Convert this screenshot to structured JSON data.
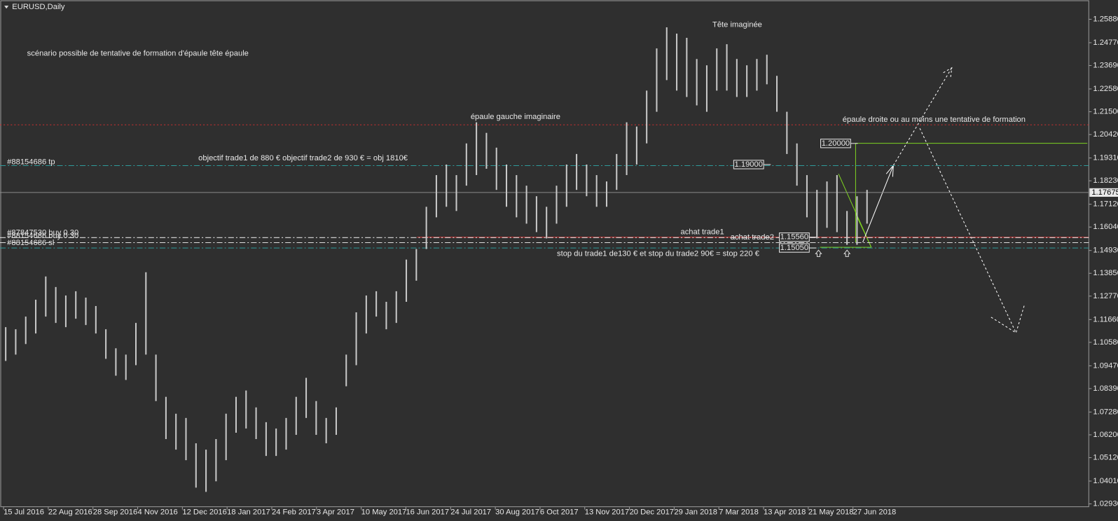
{
  "chart_data": {
    "type": "ohlc",
    "title": "EURUSD,Daily",
    "annotations": [
      "scénario possible de tentative de formation d'épaule tête épaule",
      "Tête imaginée",
      "épaule gauche imaginaire",
      "épaule droite ou au moins une tentative de formation",
      "objectif trade1 de 880 € objectif trade2 de 930 € = obj 1810€",
      "achat trade1",
      "achat trade2",
      "stop du trade1 de130 € et stop du trade2 90€ = stop 220 €"
    ],
    "x_labels": [
      "15 Jul 2016",
      "22 Aug 2016",
      "28 Sep 2016",
      "4 Nov 2016",
      "12 Dec 2016",
      "18 Jan 2017",
      "24 Feb 2017",
      "3 Apr 2017",
      "10 May 2017",
      "16 Jun 2017",
      "24 Jul 2017",
      "30 Aug 2017",
      "6 Oct 2017",
      "13 Nov 2017",
      "20 Dec 2017",
      "29 Jan 2018",
      "7 Mar 2018",
      "13 Apr 2018",
      "21 May 2018",
      "27 Jun 2018"
    ],
    "high": [
      1.113,
      1.112,
      1.118,
      1.126,
      1.137,
      1.132,
      1.128,
      1.13,
      1.127,
      1.123,
      1.112,
      1.103,
      1.1,
      1.115,
      1.139,
      1.1,
      1.08,
      1.072,
      1.07,
      1.058,
      1.055,
      1.06,
      1.072,
      1.08,
      1.083,
      1.075,
      1.068,
      1.065,
      1.07,
      1.08,
      1.089,
      1.078,
      1.07,
      1.075,
      1.1,
      1.12,
      1.128,
      1.13,
      1.125,
      1.13,
      1.145,
      1.15,
      1.17,
      1.185,
      1.19,
      1.185,
      1.2,
      1.21,
      1.205,
      1.198,
      1.19,
      1.185,
      1.18,
      1.175,
      1.17,
      1.18,
      1.19,
      1.195,
      1.19,
      1.185,
      1.182,
      1.195,
      1.21,
      1.208,
      1.225,
      1.245,
      1.255,
      1.252,
      1.25,
      1.24,
      1.237,
      1.245,
      1.247,
      1.24,
      1.237,
      1.24,
      1.242,
      1.232,
      1.215,
      1.2,
      1.185,
      1.178,
      1.182,
      1.185,
      1.168,
      1.175,
      1.178
    ],
    "low": [
      1.097,
      1.1,
      1.105,
      1.11,
      1.118,
      1.115,
      1.113,
      1.117,
      1.114,
      1.11,
      1.098,
      1.09,
      1.088,
      1.095,
      1.1,
      1.078,
      1.06,
      1.055,
      1.05,
      1.037,
      1.035,
      1.04,
      1.05,
      1.063,
      1.065,
      1.06,
      1.052,
      1.052,
      1.055,
      1.062,
      1.07,
      1.062,
      1.058,
      1.062,
      1.085,
      1.095,
      1.11,
      1.118,
      1.112,
      1.115,
      1.125,
      1.135,
      1.15,
      1.165,
      1.17,
      1.168,
      1.18,
      1.185,
      1.188,
      1.178,
      1.17,
      1.165,
      1.162,
      1.158,
      1.155,
      1.162,
      1.17,
      1.178,
      1.175,
      1.17,
      1.17,
      1.178,
      1.185,
      1.19,
      1.2,
      1.215,
      1.23,
      1.225,
      1.222,
      1.218,
      1.215,
      1.225,
      1.225,
      1.222,
      1.222,
      1.225,
      1.228,
      1.215,
      1.195,
      1.18,
      1.165,
      1.155,
      1.16,
      1.158,
      1.152,
      1.152,
      1.162
    ],
    "bar_color": "#c8c8c8",
    "ylim": [
      1.02795,
      1.26218
    ],
    "yticks": [
      {
        "value": 1.2588,
        "label": "1.25880"
      },
      {
        "value": 1.2477,
        "label": "1.24770"
      },
      {
        "value": 1.2369,
        "label": "1.23690"
      },
      {
        "value": 1.2258,
        "label": "1.22580"
      },
      {
        "value": 1.215,
        "label": "1.21500"
      },
      {
        "value": 1.2042,
        "label": "1.20420"
      },
      {
        "value": 1.1931,
        "label": "1.19310"
      },
      {
        "value": 1.1823,
        "label": "1.18230"
      },
      {
        "value": 1.1712,
        "label": "1.17120"
      },
      {
        "value": 1.1604,
        "label": "1.16040"
      },
      {
        "value": 1.1493,
        "label": "1.14930"
      },
      {
        "value": 1.1385,
        "label": "1.13850"
      },
      {
        "value": 1.1277,
        "label": "1.12770"
      },
      {
        "value": 1.1166,
        "label": "1.11660"
      },
      {
        "value": 1.1058,
        "label": "1.10580"
      },
      {
        "value": 1.0947,
        "label": "1.09470"
      },
      {
        "value": 1.0839,
        "label": "1.08390"
      },
      {
        "value": 1.0728,
        "label": "1.07280"
      },
      {
        "value": 1.062,
        "label": "1.06200"
      },
      {
        "value": 1.0512,
        "label": "1.05120"
      },
      {
        "value": 1.0401,
        "label": "1.04010"
      },
      {
        "value": 1.0293,
        "label": "1.02930"
      }
    ],
    "current_price": {
      "value": 1.17675,
      "label": "1.17675"
    },
    "levels": [
      {
        "value": 1.2088,
        "color": "#d03030",
        "style": "dotted"
      },
      {
        "value": 1.1895,
        "color": "#2f9a9a",
        "style": "dashdot"
      },
      {
        "value": 1.1556,
        "color": "#e03030",
        "style": "solid"
      },
      {
        "value": 1.1554,
        "color": "#dddddd",
        "style": "dashdot"
      },
      {
        "value": 1.153,
        "color": "#dddddd",
        "style": "dashdot"
      },
      {
        "value": 1.1505,
        "color": "#2f9a9a",
        "style": "dashdot"
      }
    ],
    "order_labels": [
      "#88154686 tp",
      "#87847530 buy 0.30",
      "#88154686 buy 0.30",
      "#88154686 sl"
    ],
    "price_boxes": [
      {
        "value": 1.2,
        "label": "1.20000"
      },
      {
        "value": 1.19,
        "label": "1.19000"
      },
      {
        "value": 1.1556,
        "label": "1.15560"
      },
      {
        "value": 1.1505,
        "label": "1.15050"
      }
    ]
  }
}
